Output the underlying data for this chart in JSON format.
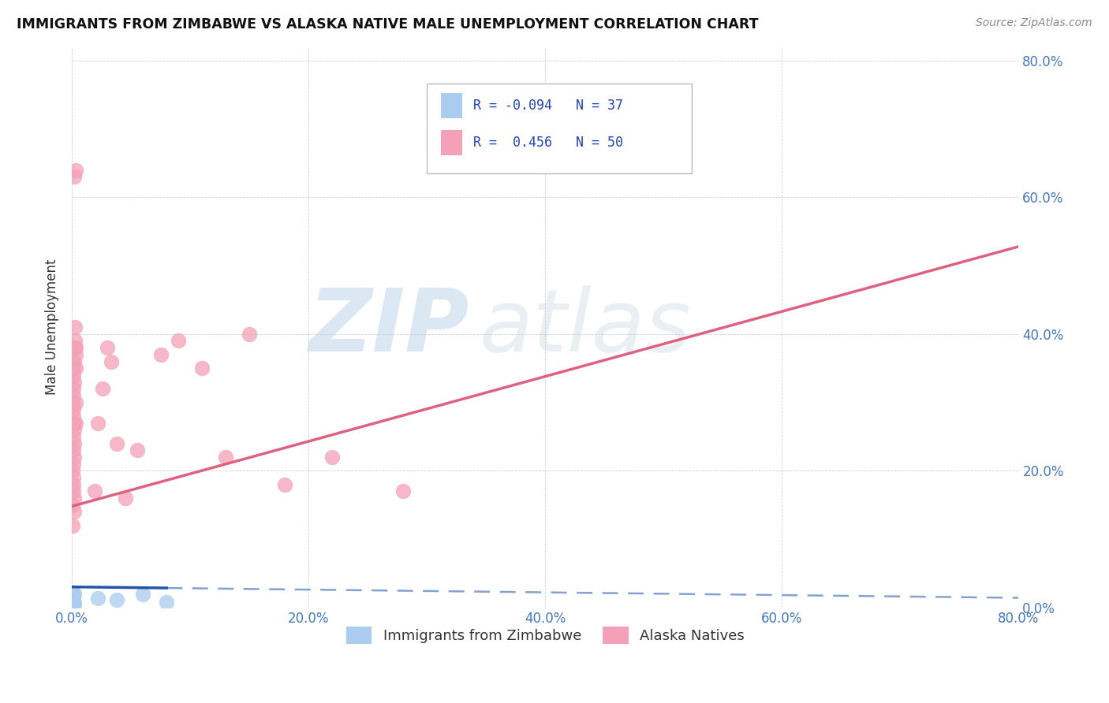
{
  "title": "IMMIGRANTS FROM ZIMBABWE VS ALASKA NATIVE MALE UNEMPLOYMENT CORRELATION CHART",
  "source": "Source: ZipAtlas.com",
  "ylabel": "Male Unemployment",
  "x_tick_labels": [
    "0.0%",
    "",
    "",
    "",
    "20.0%",
    "",
    "",
    "",
    "40.0%",
    "",
    "",
    "",
    "60.0%",
    "",
    "",
    "",
    "80.0%"
  ],
  "y_tick_labels_right": [
    "0.0%",
    "20.0%",
    "40.0%",
    "60.0%",
    "80.0%"
  ],
  "xlim": [
    0.0,
    0.8
  ],
  "ylim": [
    0.0,
    0.82
  ],
  "legend_label1": "Immigrants from Zimbabwe",
  "legend_label2": "Alaska Natives",
  "blue_color": "#AACCEE",
  "pink_color": "#F4A0B8",
  "blue_line_color": "#2255AA",
  "pink_line_color": "#E06080",
  "watermark_zip": "ZIP",
  "watermark_atlas": "atlas",
  "blue_intercept": 0.03,
  "blue_slope": -0.02,
  "pink_intercept": 0.148,
  "pink_slope": 0.475,
  "blue_scatter_x": [
    0.0005,
    0.001,
    0.0008,
    0.0012,
    0.0006,
    0.0009,
    0.0015,
    0.0007,
    0.001,
    0.0005,
    0.0018,
    0.0008,
    0.001,
    0.0006,
    0.0009,
    0.0014,
    0.001,
    0.0008,
    0.0005,
    0.0009,
    0.001,
    0.0013,
    0.0008,
    0.0005,
    0.001,
    0.0018,
    0.0009,
    0.0006,
    0.0008,
    0.022,
    0.0009,
    0.0006,
    0.001,
    0.038,
    0.06,
    0.0009,
    0.08
  ],
  "blue_scatter_y": [
    0.012,
    0.008,
    0.01,
    0.005,
    0.015,
    0.018,
    0.006,
    0.003,
    0.009,
    0.013,
    0.02,
    0.009,
    0.006,
    0.011,
    0.016,
    0.004,
    0.006,
    0.019,
    0.022,
    0.008,
    0.005,
    0.011,
    0.013,
    0.016,
    0.008,
    0.003,
    0.011,
    0.005,
    0.021,
    0.013,
    0.008,
    0.003,
    0.016,
    0.011,
    0.019,
    0.005,
    0.008
  ],
  "pink_scatter_x": [
    0.0005,
    0.001,
    0.0012,
    0.0008,
    0.0015,
    0.001,
    0.002,
    0.0008,
    0.001,
    0.0015,
    0.0008,
    0.001,
    0.0022,
    0.0015,
    0.002,
    0.001,
    0.0025,
    0.0015,
    0.001,
    0.002,
    0.0022,
    0.0015,
    0.002,
    0.0025,
    0.0022,
    0.003,
    0.002,
    0.0022,
    0.003,
    0.0025,
    0.0032,
    0.003,
    0.0035,
    0.0032,
    0.03,
    0.045,
    0.075,
    0.09,
    0.11,
    0.13,
    0.15,
    0.055,
    0.038,
    0.019,
    0.022,
    0.026,
    0.033,
    0.18,
    0.22,
    0.28
  ],
  "pink_scatter_y": [
    0.3,
    0.25,
    0.28,
    0.2,
    0.32,
    0.18,
    0.22,
    0.15,
    0.17,
    0.35,
    0.12,
    0.19,
    0.27,
    0.29,
    0.24,
    0.21,
    0.41,
    0.31,
    0.23,
    0.33,
    0.26,
    0.34,
    0.36,
    0.38,
    0.63,
    0.64,
    0.14,
    0.16,
    0.37,
    0.39,
    0.3,
    0.27,
    0.35,
    0.38,
    0.38,
    0.16,
    0.37,
    0.39,
    0.35,
    0.22,
    0.4,
    0.23,
    0.24,
    0.17,
    0.27,
    0.32,
    0.36,
    0.18,
    0.22,
    0.17
  ]
}
